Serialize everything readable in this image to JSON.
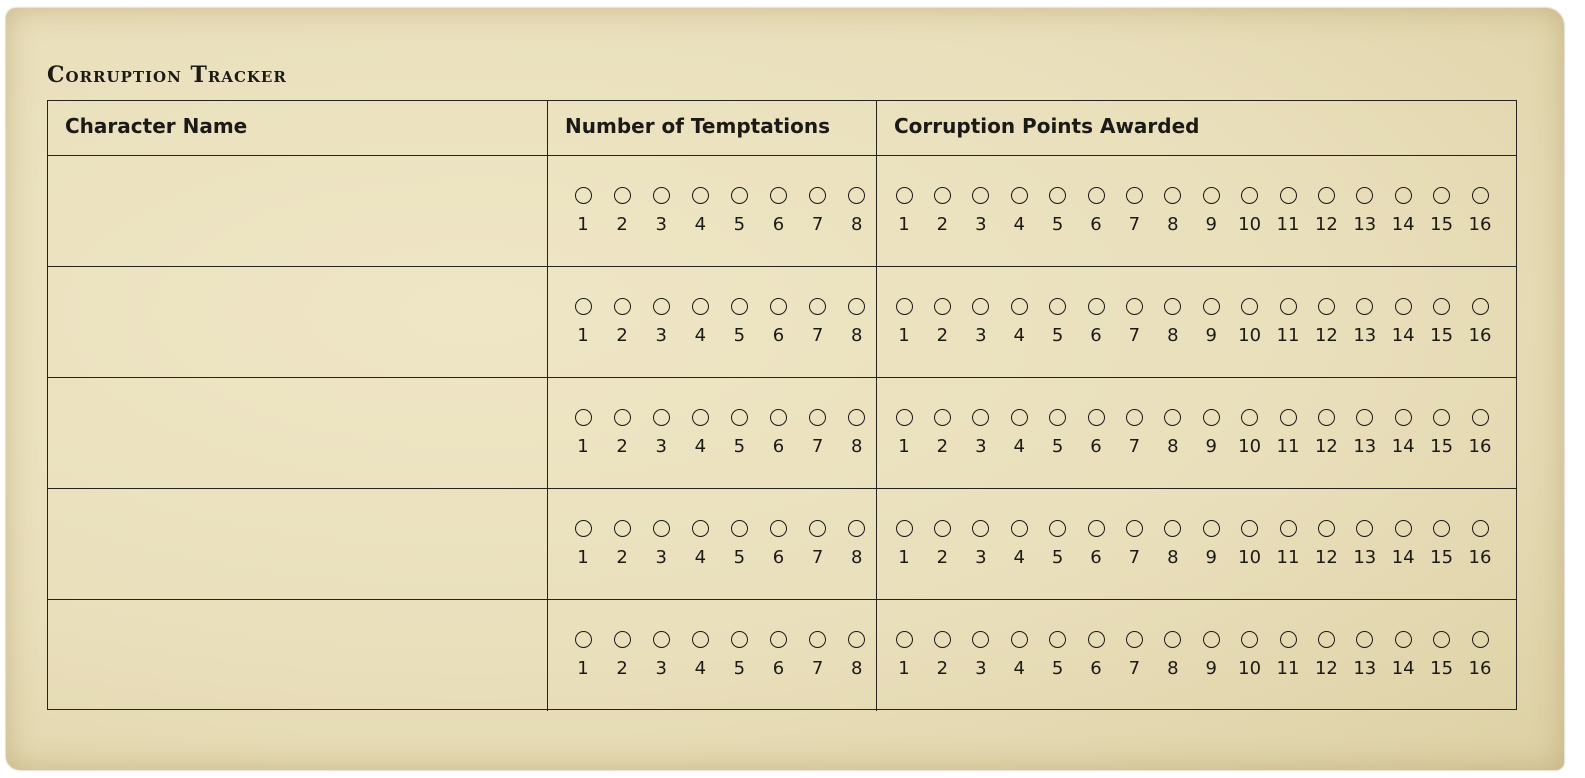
{
  "title": "Corruption Tracker",
  "headers": {
    "name": "Character Name",
    "temptations": "Number of Temptations",
    "corruption": "Corruption Points Awarded"
  },
  "temptation_options": [
    "1",
    "2",
    "3",
    "4",
    "5",
    "6",
    "7",
    "8"
  ],
  "corruption_options": [
    "1",
    "2",
    "3",
    "4",
    "5",
    "6",
    "7",
    "8",
    "9",
    "10",
    "11",
    "12",
    "13",
    "14",
    "15",
    "16"
  ],
  "rows": [
    {
      "name": "",
      "temptations_marked": 0,
      "corruption_marked": 0
    },
    {
      "name": "",
      "temptations_marked": 0,
      "corruption_marked": 0
    },
    {
      "name": "",
      "temptations_marked": 0,
      "corruption_marked": 0
    },
    {
      "name": "",
      "temptations_marked": 0,
      "corruption_marked": 0
    },
    {
      "name": "",
      "temptations_marked": 0,
      "corruption_marked": 0
    }
  ]
}
